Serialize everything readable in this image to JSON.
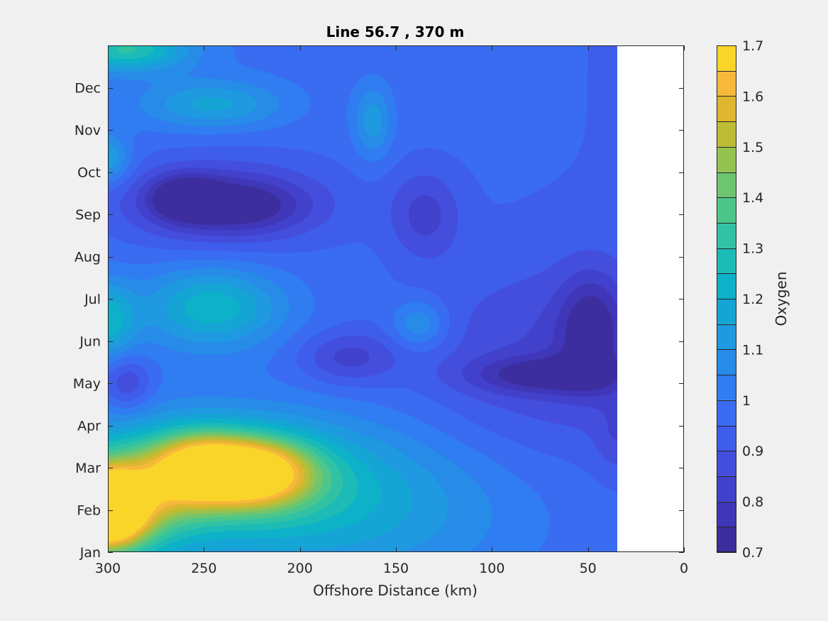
{
  "chart_data": {
    "type": "heatmap",
    "subtype": "filled-contour",
    "title": "Line 56.7 , 370 m",
    "xlabel": "Offshore Distance (km)",
    "ylabel": "",
    "xlim": [
      300,
      0
    ],
    "x_reversed": true,
    "xticks": [
      300,
      250,
      200,
      150,
      100,
      50,
      0
    ],
    "ylim": [
      1,
      13
    ],
    "yticks": [
      {
        "value": 1,
        "label": "Jan"
      },
      {
        "value": 2,
        "label": "Feb"
      },
      {
        "value": 3,
        "label": "Mar"
      },
      {
        "value": 4,
        "label": "Apr"
      },
      {
        "value": 5,
        "label": "May"
      },
      {
        "value": 6,
        "label": "Jun"
      },
      {
        "value": 7,
        "label": "Jul"
      },
      {
        "value": 8,
        "label": "Aug"
      },
      {
        "value": 9,
        "label": "Sep"
      },
      {
        "value": 10,
        "label": "Oct"
      },
      {
        "value": 11,
        "label": "Nov"
      },
      {
        "value": 12,
        "label": "Dec"
      }
    ],
    "data_x_extent": [
      35,
      300
    ],
    "colorbar": {
      "label": "Oxygen",
      "range": [
        0.7,
        1.7
      ],
      "ticks": [
        0.7,
        0.8,
        0.9,
        1,
        1.1,
        1.2,
        1.3,
        1.4,
        1.5,
        1.6,
        1.7
      ],
      "tick_labels": [
        "0.7",
        "0.8",
        "0.9",
        "1",
        "1.1",
        "1.2",
        "1.3",
        "1.4",
        "1.5",
        "1.6",
        "1.7"
      ],
      "levels": [
        0.7,
        0.75,
        0.8,
        0.85,
        0.9,
        0.95,
        1.0,
        1.05,
        1.1,
        1.15,
        1.2,
        1.25,
        1.3,
        1.35,
        1.4,
        1.45,
        1.5,
        1.55,
        1.6,
        1.65,
        1.7
      ],
      "colors": [
        "#3c2e9e",
        "#3f37b8",
        "#4141cc",
        "#434edc",
        "#3f5deb",
        "#3a6cf2",
        "#2f7df1",
        "#268ce8",
        "#1f99df",
        "#15a5d5",
        "#0db1c8",
        "#1dbbb6",
        "#30c2a3",
        "#4cc68b",
        "#6ec56f",
        "#96c250",
        "#bcbc35",
        "#deb62f",
        "#f7b93b",
        "#f9d52a"
      ]
    },
    "background": "#ffffff",
    "features": [
      {
        "x": 300,
        "y": 2.0,
        "value": 1.65,
        "sx": 12,
        "sy": 0.55
      },
      {
        "x": 300,
        "y": 2.1,
        "value": 1.45,
        "sx": 25,
        "sy": 0.9
      },
      {
        "x": 253,
        "y": 3.0,
        "value": 1.42,
        "sx": 18,
        "sy": 0.6
      },
      {
        "x": 222,
        "y": 2.9,
        "value": 1.45,
        "sx": 20,
        "sy": 0.55
      },
      {
        "x": 240,
        "y": 2.8,
        "value": 1.25,
        "sx": 50,
        "sy": 0.9
      },
      {
        "x": 180,
        "y": 2.0,
        "value": 1.15,
        "sx": 70,
        "sy": 1.4
      },
      {
        "x": 245,
        "y": 6.8,
        "value": 1.22,
        "sx": 25,
        "sy": 0.65
      },
      {
        "x": 300,
        "y": 6.5,
        "value": 1.2,
        "sx": 10,
        "sy": 0.6
      },
      {
        "x": 300,
        "y": 10.3,
        "value": 1.15,
        "sx": 8,
        "sy": 0.4
      },
      {
        "x": 245,
        "y": 11.6,
        "value": 1.15,
        "sx": 25,
        "sy": 0.4
      },
      {
        "x": 290,
        "y": 12.9,
        "value": 1.28,
        "sx": 22,
        "sy": 0.35
      },
      {
        "x": 162,
        "y": 11.2,
        "value": 1.13,
        "sx": 7,
        "sy": 0.6
      },
      {
        "x": 138,
        "y": 6.4,
        "value": 1.12,
        "sx": 10,
        "sy": 0.4
      },
      {
        "x": 260,
        "y": 9.4,
        "value": 0.74,
        "sx": 12,
        "sy": 0.35
      },
      {
        "x": 232,
        "y": 9.2,
        "value": 0.78,
        "sx": 25,
        "sy": 0.45
      },
      {
        "x": 248,
        "y": 9.3,
        "value": 0.82,
        "sx": 45,
        "sy": 0.85
      },
      {
        "x": 290,
        "y": 5.0,
        "value": 0.82,
        "sx": 9,
        "sy": 0.45
      },
      {
        "x": 175,
        "y": 5.6,
        "value": 0.83,
        "sx": 18,
        "sy": 0.45
      },
      {
        "x": 135,
        "y": 9.0,
        "value": 0.84,
        "sx": 13,
        "sy": 0.75
      },
      {
        "x": 70,
        "y": 5.2,
        "value": 0.78,
        "sx": 28,
        "sy": 0.3
      },
      {
        "x": 48,
        "y": 6.3,
        "value": 0.77,
        "sx": 12,
        "sy": 0.9
      },
      {
        "x": 75,
        "y": 5.6,
        "value": 0.86,
        "sx": 45,
        "sy": 1.6
      },
      {
        "x": 35,
        "y": 3.7,
        "value": 0.9,
        "sx": 8,
        "sy": 0.6
      }
    ]
  }
}
